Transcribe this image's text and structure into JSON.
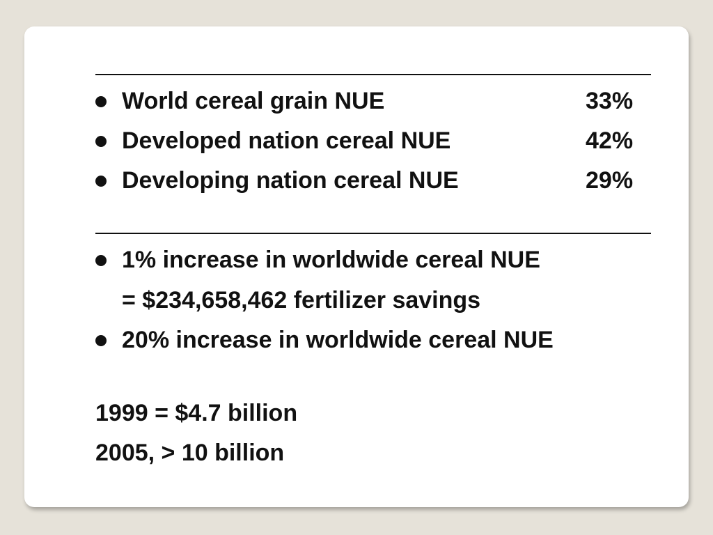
{
  "nue_stats": [
    {
      "label": "World cereal grain NUE",
      "value": "33%"
    },
    {
      "label": "Developed nation cereal NUE",
      "value": "42%"
    },
    {
      "label": "Developing nation cereal NUE",
      "value": "29%"
    }
  ],
  "increase_points": [
    {
      "line1": "1% increase in worldwide cereal NUE",
      "line2": "= $234,658,462 fertilizer savings"
    },
    {
      "line1": "20% increase in worldwide cereal NUE"
    }
  ],
  "summary_lines": [
    "1999  = $4.7 billion",
    "2005, > 10 billion"
  ]
}
